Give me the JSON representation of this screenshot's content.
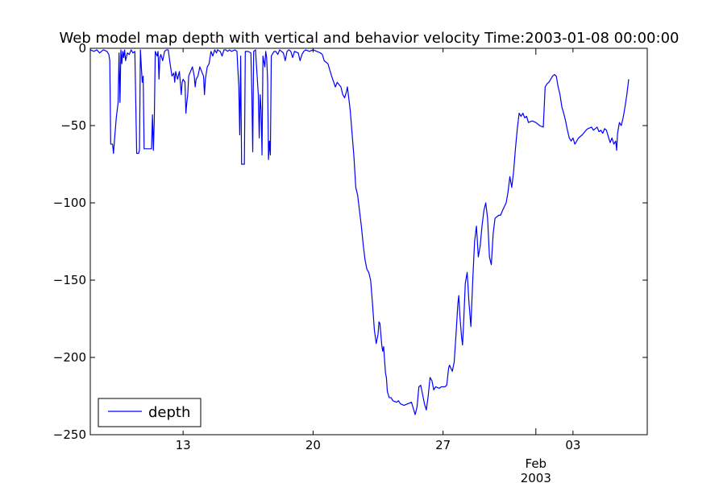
{
  "chart_data": {
    "type": "line",
    "title": "Web model map depth with vertical and behavior velocity  Time:2003-01-08 00:00:00",
    "xlabel": "",
    "ylabel": "",
    "xlim": [
      "2003-01-08",
      "2003-02-07"
    ],
    "ylim": [
      -250,
      0
    ],
    "grid": false,
    "legend_position": "lower-left",
    "x_ticks": [
      {
        "date": "2003-01-13",
        "label": "13"
      },
      {
        "date": "2003-01-20",
        "label": "20"
      },
      {
        "date": "2003-01-27",
        "label": "27"
      },
      {
        "date": "2003-02-03",
        "label": "03"
      }
    ],
    "x_secondary_labels": [
      {
        "date": "2003-02-01",
        "label": "Feb",
        "year": "2003"
      }
    ],
    "y_ticks": [
      {
        "value": 0,
        "label": "0"
      },
      {
        "value": -50,
        "label": "−50"
      },
      {
        "value": -100,
        "label": "−100"
      },
      {
        "value": -150,
        "label": "−150"
      },
      {
        "value": -200,
        "label": "−200"
      },
      {
        "value": -250,
        "label": "−250"
      }
    ],
    "series": [
      {
        "name": "depth",
        "color": "#0000ff",
        "x_unit": "days since 2003-01-08",
        "points": [
          [
            0.0,
            -1
          ],
          [
            0.2,
            -2
          ],
          [
            0.35,
            -1
          ],
          [
            0.5,
            -3
          ],
          [
            0.7,
            -1
          ],
          [
            0.9,
            -2
          ],
          [
            1.0,
            -4
          ],
          [
            1.05,
            -8
          ],
          [
            1.1,
            -62
          ],
          [
            1.2,
            -62
          ],
          [
            1.25,
            -68
          ],
          [
            1.3,
            -60
          ],
          [
            1.4,
            -45
          ],
          [
            1.5,
            -35
          ],
          [
            1.55,
            -3
          ],
          [
            1.6,
            -35
          ],
          [
            1.65,
            -1
          ],
          [
            1.7,
            -10
          ],
          [
            1.75,
            -2
          ],
          [
            1.8,
            -6
          ],
          [
            1.85,
            -1
          ],
          [
            1.9,
            -8
          ],
          [
            2.0,
            -3
          ],
          [
            2.1,
            -4
          ],
          [
            2.2,
            -1
          ],
          [
            2.3,
            -3
          ],
          [
            2.4,
            -2
          ],
          [
            2.5,
            -68
          ],
          [
            2.6,
            -68
          ],
          [
            2.65,
            -66
          ],
          [
            2.7,
            -1
          ],
          [
            2.75,
            -12
          ],
          [
            2.8,
            -22
          ],
          [
            2.85,
            -18
          ],
          [
            2.9,
            -65
          ],
          [
            3.0,
            -65
          ],
          [
            3.1,
            -65
          ],
          [
            3.2,
            -65
          ],
          [
            3.3,
            -65
          ],
          [
            3.35,
            -43
          ],
          [
            3.4,
            -66
          ],
          [
            3.45,
            -45
          ],
          [
            3.5,
            -2
          ],
          [
            3.6,
            -5
          ],
          [
            3.65,
            -2
          ],
          [
            3.7,
            -20
          ],
          [
            3.75,
            -6
          ],
          [
            3.8,
            -4
          ],
          [
            3.9,
            -8
          ],
          [
            4.0,
            -2
          ],
          [
            4.1,
            -1
          ],
          [
            4.2,
            -1
          ],
          [
            4.3,
            -10
          ],
          [
            4.4,
            -18
          ],
          [
            4.5,
            -16
          ],
          [
            4.55,
            -22
          ],
          [
            4.6,
            -15
          ],
          [
            4.7,
            -20
          ],
          [
            4.8,
            -15
          ],
          [
            4.85,
            -22
          ],
          [
            4.9,
            -30
          ],
          [
            4.95,
            -22
          ],
          [
            5.0,
            -20
          ],
          [
            5.1,
            -22
          ],
          [
            5.15,
            -42
          ],
          [
            5.2,
            -35
          ],
          [
            5.25,
            -30
          ],
          [
            5.3,
            -18
          ],
          [
            5.4,
            -15
          ],
          [
            5.5,
            -12
          ],
          [
            5.6,
            -18
          ],
          [
            5.65,
            -25
          ],
          [
            5.7,
            -20
          ],
          [
            5.8,
            -18
          ],
          [
            5.9,
            -12
          ],
          [
            6.0,
            -15
          ],
          [
            6.1,
            -18
          ],
          [
            6.15,
            -30
          ],
          [
            6.2,
            -20
          ],
          [
            6.3,
            -12
          ],
          [
            6.4,
            -10
          ],
          [
            6.5,
            -2
          ],
          [
            6.6,
            -5
          ],
          [
            6.7,
            -1
          ],
          [
            6.8,
            -3
          ],
          [
            6.85,
            -1
          ],
          [
            7.0,
            -2
          ],
          [
            7.1,
            -5
          ],
          [
            7.2,
            -1
          ],
          [
            7.3,
            -1
          ],
          [
            7.4,
            -2
          ],
          [
            7.5,
            -1
          ],
          [
            7.6,
            -2
          ],
          [
            7.8,
            -1
          ],
          [
            7.9,
            -2
          ],
          [
            8.0,
            -25
          ],
          [
            8.05,
            -56
          ],
          [
            8.1,
            -5
          ],
          [
            8.15,
            -75
          ],
          [
            8.3,
            -75
          ],
          [
            8.35,
            -2
          ],
          [
            8.5,
            -2
          ],
          [
            8.65,
            -3
          ],
          [
            8.7,
            -28
          ],
          [
            8.75,
            -67
          ],
          [
            8.8,
            -2
          ],
          [
            8.9,
            -1
          ],
          [
            9.05,
            -30
          ],
          [
            9.1,
            -58
          ],
          [
            9.15,
            -30
          ],
          [
            9.2,
            -40
          ],
          [
            9.25,
            -69
          ],
          [
            9.3,
            -5
          ],
          [
            9.4,
            -12
          ],
          [
            9.45,
            -2
          ],
          [
            9.5,
            -6
          ],
          [
            9.55,
            -20
          ],
          [
            9.6,
            -72
          ],
          [
            9.65,
            -60
          ],
          [
            9.7,
            -69
          ],
          [
            9.75,
            -5
          ],
          [
            9.9,
            -2
          ],
          [
            10.0,
            -2
          ],
          [
            10.1,
            -4
          ],
          [
            10.2,
            -1
          ],
          [
            10.3,
            -2
          ],
          [
            10.4,
            -3
          ],
          [
            10.5,
            -8
          ],
          [
            10.6,
            -2
          ],
          [
            10.7,
            -1
          ],
          [
            10.8,
            -2
          ],
          [
            10.9,
            -6
          ],
          [
            11.0,
            -2
          ],
          [
            11.2,
            -3
          ],
          [
            11.3,
            -8
          ],
          [
            11.4,
            -4
          ],
          [
            11.5,
            -2
          ],
          [
            11.6,
            -1
          ],
          [
            11.8,
            -2
          ],
          [
            12.0,
            -1
          ],
          [
            12.2,
            -2
          ],
          [
            12.4,
            -3
          ],
          [
            12.5,
            -4
          ],
          [
            12.6,
            -8
          ],
          [
            12.8,
            -10
          ],
          [
            12.9,
            -14
          ],
          [
            13.0,
            -18
          ],
          [
            13.2,
            -25
          ],
          [
            13.3,
            -22
          ],
          [
            13.5,
            -25
          ],
          [
            13.6,
            -30
          ],
          [
            13.7,
            -32
          ],
          [
            13.8,
            -28
          ],
          [
            13.85,
            -25
          ],
          [
            13.9,
            -30
          ],
          [
            14.0,
            -40
          ],
          [
            14.1,
            -55
          ],
          [
            14.2,
            -70
          ],
          [
            14.3,
            -90
          ],
          [
            14.4,
            -95
          ],
          [
            14.5,
            -105
          ],
          [
            14.6,
            -115
          ],
          [
            14.7,
            -127
          ],
          [
            14.8,
            -137
          ],
          [
            14.9,
            -143
          ],
          [
            15.0,
            -145
          ],
          [
            15.1,
            -150
          ],
          [
            15.2,
            -165
          ],
          [
            15.3,
            -182
          ],
          [
            15.4,
            -191
          ],
          [
            15.5,
            -185
          ],
          [
            15.55,
            -177
          ],
          [
            15.6,
            -178
          ],
          [
            15.7,
            -192
          ],
          [
            15.75,
            -196
          ],
          [
            15.8,
            -193
          ],
          [
            15.9,
            -210
          ],
          [
            15.95,
            -213
          ],
          [
            16.0,
            -222
          ],
          [
            16.1,
            -226
          ],
          [
            16.2,
            -226
          ],
          [
            16.3,
            -228
          ],
          [
            16.5,
            -229
          ],
          [
            16.6,
            -228
          ],
          [
            16.7,
            -230
          ],
          [
            16.9,
            -231
          ],
          [
            17.1,
            -230
          ],
          [
            17.3,
            -229
          ],
          [
            17.4,
            -233
          ],
          [
            17.5,
            -237
          ],
          [
            17.6,
            -232
          ],
          [
            17.7,
            -219
          ],
          [
            17.8,
            -218
          ],
          [
            17.85,
            -221
          ],
          [
            18.0,
            -230
          ],
          [
            18.1,
            -234
          ],
          [
            18.2,
            -225
          ],
          [
            18.3,
            -213
          ],
          [
            18.4,
            -215
          ],
          [
            18.5,
            -221
          ],
          [
            18.6,
            -219
          ],
          [
            18.8,
            -220
          ],
          [
            18.9,
            -219
          ],
          [
            19.0,
            -219
          ],
          [
            19.1,
            -219
          ],
          [
            19.2,
            -218
          ],
          [
            19.3,
            -207
          ],
          [
            19.35,
            -205
          ],
          [
            19.5,
            -209
          ],
          [
            19.6,
            -203
          ],
          [
            19.7,
            -185
          ],
          [
            19.8,
            -165
          ],
          [
            19.85,
            -160
          ],
          [
            19.9,
            -172
          ],
          [
            20.0,
            -187
          ],
          [
            20.05,
            -192
          ],
          [
            20.1,
            -180
          ],
          [
            20.2,
            -152
          ],
          [
            20.3,
            -145
          ],
          [
            20.4,
            -165
          ],
          [
            20.5,
            -180
          ],
          [
            20.6,
            -150
          ],
          [
            20.7,
            -125
          ],
          [
            20.8,
            -115
          ],
          [
            20.9,
            -135
          ],
          [
            21.0,
            -128
          ],
          [
            21.1,
            -115
          ],
          [
            21.2,
            -105
          ],
          [
            21.3,
            -100
          ],
          [
            21.4,
            -110
          ],
          [
            21.5,
            -135
          ],
          [
            21.6,
            -140
          ],
          [
            21.7,
            -120
          ],
          [
            21.8,
            -110
          ],
          [
            22.0,
            -108
          ],
          [
            22.1,
            -108
          ],
          [
            22.2,
            -105
          ],
          [
            22.4,
            -100
          ],
          [
            22.5,
            -93
          ],
          [
            22.6,
            -83
          ],
          [
            22.7,
            -90
          ],
          [
            22.8,
            -80
          ],
          [
            22.9,
            -65
          ],
          [
            23.0,
            -52
          ],
          [
            23.1,
            -42
          ],
          [
            23.2,
            -44
          ],
          [
            23.3,
            -42
          ],
          [
            23.4,
            -45
          ],
          [
            23.5,
            -44
          ],
          [
            23.6,
            -48
          ],
          [
            23.8,
            -47
          ],
          [
            24.0,
            -48
          ],
          [
            24.2,
            -50
          ],
          [
            24.4,
            -51
          ],
          [
            24.5,
            -25
          ],
          [
            24.6,
            -23
          ],
          [
            24.7,
            -22
          ],
          [
            24.8,
            -20
          ],
          [
            24.9,
            -18
          ],
          [
            25.0,
            -17
          ],
          [
            25.1,
            -18
          ],
          [
            25.2,
            -25
          ],
          [
            25.3,
            -30
          ],
          [
            25.4,
            -38
          ],
          [
            25.5,
            -42
          ],
          [
            25.6,
            -47
          ],
          [
            25.7,
            -53
          ],
          [
            25.8,
            -58
          ],
          [
            25.9,
            -60
          ],
          [
            26.0,
            -58
          ],
          [
            26.1,
            -62
          ],
          [
            26.2,
            -60
          ],
          [
            26.3,
            -58
          ],
          [
            26.5,
            -56
          ],
          [
            26.7,
            -53
          ],
          [
            26.8,
            -52
          ],
          [
            27.0,
            -51
          ],
          [
            27.1,
            -53
          ],
          [
            27.2,
            -52
          ],
          [
            27.3,
            -51
          ],
          [
            27.4,
            -54
          ],
          [
            27.5,
            -53
          ],
          [
            27.6,
            -55
          ],
          [
            27.7,
            -52
          ],
          [
            27.8,
            -53
          ],
          [
            27.9,
            -57
          ],
          [
            28.0,
            -61
          ],
          [
            28.1,
            -58
          ],
          [
            28.2,
            -62
          ],
          [
            28.3,
            -60
          ],
          [
            28.35,
            -66
          ],
          [
            28.4,
            -55
          ],
          [
            28.5,
            -48
          ],
          [
            28.6,
            -50
          ],
          [
            28.7,
            -45
          ],
          [
            28.8,
            -38
          ],
          [
            28.9,
            -30
          ],
          [
            29.0,
            -20
          ]
        ]
      }
    ]
  }
}
